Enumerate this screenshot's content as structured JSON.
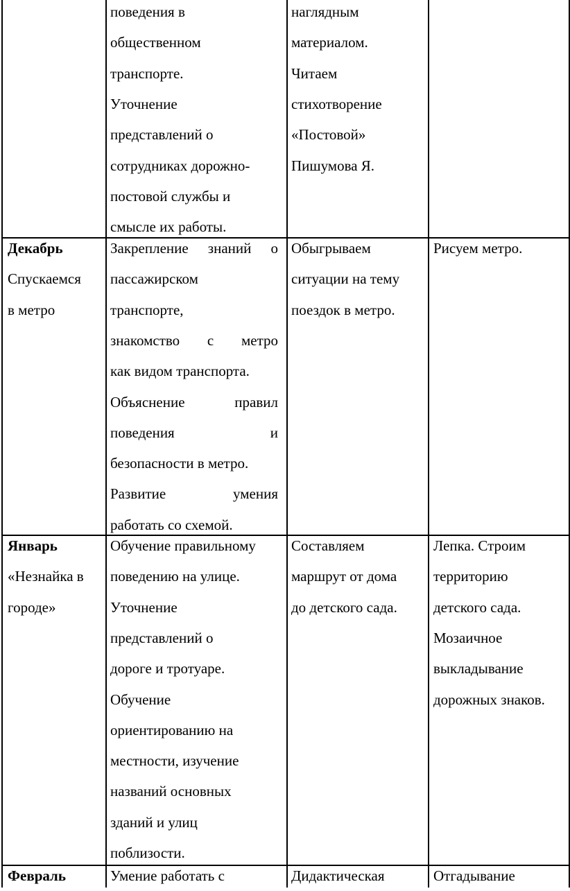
{
  "table": {
    "rows": [
      [
        [],
        [
          "поведения в",
          "общественном",
          "транспорте.",
          "Уточнение",
          "представлений о",
          "сотрудниках дорожно-",
          "постовой службы и",
          "смысле их работы."
        ],
        [
          "наглядным",
          "материалом.",
          "Читаем",
          "стихотворение",
          "«Постовой»",
          "Пишумова Я."
        ],
        []
      ],
      [
        [
          "Декабрь",
          "Спускаемся",
          "в метро"
        ],
        [
          "Закрепление знаний о",
          "пассажирском",
          "транспорте,",
          "знакомство с метро",
          "как видом транспорта.",
          "Объяснение правил",
          "поведения и",
          "безопасности в метро.",
          "Развитие умения",
          "работать со схемой."
        ],
        [
          "Обыгрываем",
          "ситуации на тему",
          "поездок в метро."
        ],
        [
          "Рисуем метро."
        ]
      ],
      [
        [
          "Январь",
          "«Незнайка в",
          "городе»"
        ],
        [
          "Обучение правильному",
          "поведению на улице.",
          "Уточнение",
          "представлений о",
          "дороге и тротуаре.",
          "Обучение",
          "ориентированию на",
          "местности, изучение",
          "названий основных",
          "зданий и улиц",
          "поблизости."
        ],
        [
          "Составляем",
          "маршрут от дома",
          "до детского сада."
        ],
        [
          "Лепка. Строим",
          "территорию",
          "детского сада.",
          "Мозаичное",
          "выкладывание",
          "дорожных знаков."
        ]
      ],
      [
        [
          "Февраль"
        ],
        [
          "Умение работать с"
        ],
        [
          "Дидактическая"
        ],
        [
          "Отгадывание"
        ]
      ]
    ]
  }
}
